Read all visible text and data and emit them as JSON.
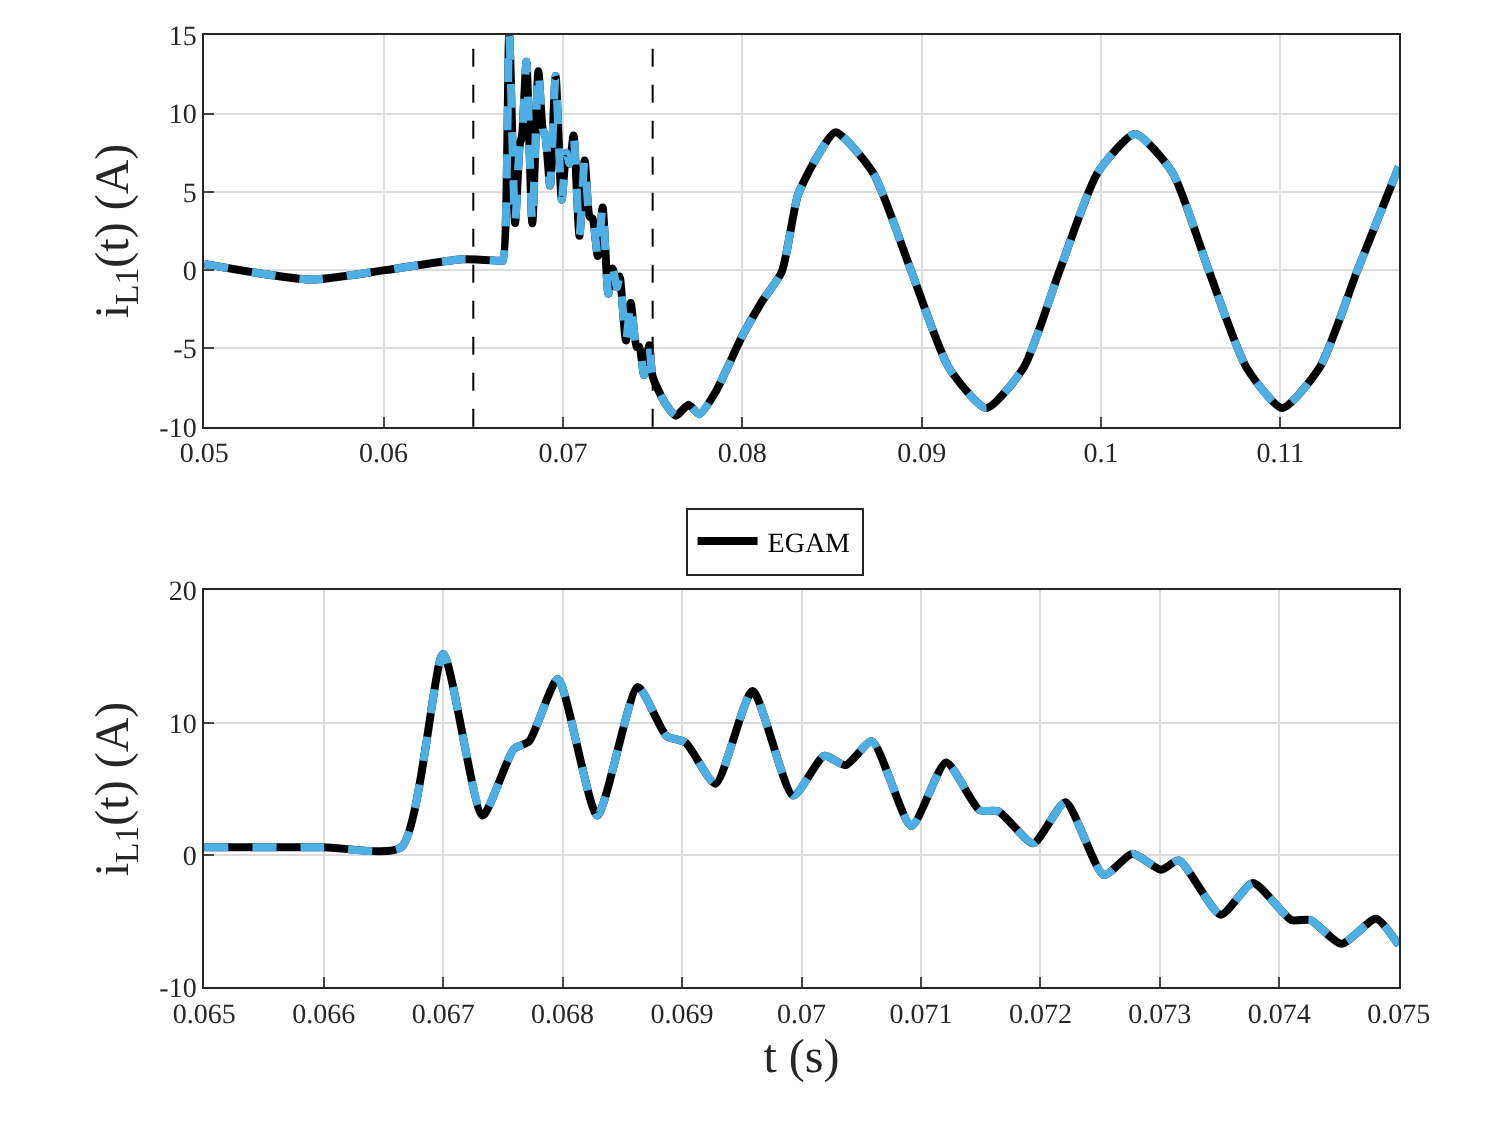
{
  "chart_data": [
    {
      "type": "line",
      "ylabel": "i$_{L1}$(t) (A)",
      "xlim": [
        0.05,
        0.1166
      ],
      "xticks": [
        0.05,
        0.06,
        0.07,
        0.08,
        0.09,
        0.1,
        0.11
      ],
      "ylim": [
        -10,
        15
      ],
      "yticks": [
        -10,
        -5,
        0,
        5,
        10,
        15
      ],
      "grid": true,
      "marker": "none",
      "legend": "bottom",
      "x": [
        0.05,
        0.0559,
        0.0601,
        0.0644,
        0.0665,
        0.06665,
        0.067,
        0.06733,
        0.06759,
        0.06772,
        0.06796,
        0.06829,
        0.06863,
        0.06887,
        0.06903,
        0.06928,
        0.06959,
        0.06993,
        0.07019,
        0.07037,
        0.07059,
        0.07092,
        0.07121,
        0.07149,
        0.07165,
        0.07194,
        0.07221,
        0.07253,
        0.07277,
        0.07301,
        0.07316,
        0.07351,
        0.07378,
        0.0741,
        0.07426,
        0.07452,
        0.07481,
        0.075,
        0.0757,
        0.0763,
        0.077,
        0.0776,
        0.0785,
        0.08,
        0.0811,
        0.0822,
        0.0831,
        0.0841,
        0.0852,
        0.0873,
        0.0894,
        0.0915,
        0.0936,
        0.0957,
        0.0977,
        0.0998,
        0.1019,
        0.104,
        0.106,
        0.1081,
        0.1101,
        0.1122,
        0.1143,
        0.1166
      ],
      "series": [
        {
          "name": "EGAM",
          "color": "#000000",
          "line_style": "solid",
          "values": [
            0.4,
            -0.6,
            0,
            0.7,
            0.6,
            0.6,
            15,
            3.0,
            8.0,
            8.6,
            13.3,
            3.0,
            12.7,
            9.0,
            8.5,
            5.4,
            12.4,
            4.5,
            7.5,
            6.8,
            8.6,
            2.2,
            7.0,
            3.4,
            3.3,
            0.9,
            4.0,
            -1.5,
            0.1,
            -1.1,
            -0.4,
            -4.5,
            -2.1,
            -4.9,
            -4.9,
            -6.7,
            -4.8,
            -6.8,
            -8.5,
            -9.3,
            -8.6,
            -9.2,
            -7.8,
            -4.2,
            -2.0,
            -0.1,
            4.8,
            7.1,
            8.8,
            6.2,
            0,
            -6.2,
            -8.8,
            -6.2,
            0,
            6.2,
            8.7,
            6.2,
            0,
            -6.2,
            -8.8,
            -6.2,
            0,
            6.6
          ]
        },
        {
          "color": "#4dafe3",
          "line_style": "dashed",
          "values": [
            0.4,
            -0.6,
            0,
            0.7,
            0.6,
            0.6,
            15,
            3.0,
            8.0,
            8.6,
            13.3,
            3.0,
            12.7,
            9.0,
            8.5,
            5.4,
            12.4,
            4.5,
            7.5,
            6.8,
            8.6,
            2.2,
            7.0,
            3.4,
            3.3,
            0.9,
            4.0,
            -1.5,
            0.1,
            -1.1,
            -0.4,
            -4.5,
            -2.1,
            -4.9,
            -4.9,
            -6.7,
            -4.8,
            -6.8,
            -8.5,
            -9.3,
            -8.6,
            -9.2,
            -7.8,
            -4.2,
            -2.0,
            -0.1,
            4.8,
            7.1,
            8.8,
            6.2,
            0,
            -6.2,
            -8.8,
            -6.2,
            0,
            6.2,
            8.7,
            6.2,
            0,
            -6.2,
            -8.8,
            -6.2,
            0,
            6.6
          ]
        }
      ],
      "ref_lines": [
        {
          "axis": "x",
          "value": 0.065,
          "color": "#000000",
          "line_style": "dashed"
        },
        {
          "axis": "x",
          "value": 0.075,
          "color": "#000000",
          "line_style": "dashed"
        }
      ]
    },
    {
      "type": "line",
      "xlabel": "t (s)",
      "ylabel": "i$_{L1}$(t) (A)",
      "xlim": [
        0.065,
        0.075
      ],
      "xticks": [
        0.065,
        0.066,
        0.067,
        0.068,
        0.069,
        0.07,
        0.071,
        0.072,
        0.073,
        0.074,
        0.075
      ],
      "ylim": [
        -10,
        20
      ],
      "yticks": [
        -10,
        0,
        10,
        20
      ],
      "grid": true,
      "marker": "none",
      "x": [
        0.065,
        0.066,
        0.06665,
        0.067,
        0.06733,
        0.06759,
        0.06772,
        0.06796,
        0.06829,
        0.06863,
        0.06887,
        0.06903,
        0.06928,
        0.06959,
        0.06993,
        0.07019,
        0.07037,
        0.07059,
        0.07092,
        0.07121,
        0.07149,
        0.07165,
        0.07194,
        0.07221,
        0.07253,
        0.07277,
        0.07301,
        0.07316,
        0.07351,
        0.07378,
        0.0741,
        0.07426,
        0.07452,
        0.07481,
        0.075
      ],
      "series": [
        {
          "color": "#000000",
          "line_style": "solid",
          "values": [
            0.6,
            0.6,
            0.6,
            15.2,
            3.0,
            8.0,
            8.6,
            13.3,
            3.0,
            12.7,
            9.0,
            8.5,
            5.4,
            12.4,
            4.5,
            7.5,
            6.8,
            8.6,
            2.2,
            7.0,
            3.4,
            3.3,
            0.9,
            4.0,
            -1.5,
            0.1,
            -1.1,
            -0.4,
            -4.5,
            -2.1,
            -4.9,
            -4.9,
            -6.7,
            -4.8,
            -6.8
          ]
        },
        {
          "color": "#4dafe3",
          "line_style": "dashed",
          "values": [
            0.6,
            0.6,
            0.6,
            15.2,
            3.0,
            8.0,
            8.6,
            13.3,
            3.0,
            12.7,
            9.0,
            8.5,
            5.4,
            12.4,
            4.5,
            7.5,
            6.8,
            8.6,
            2.2,
            7.0,
            3.4,
            3.3,
            0.9,
            4.0,
            -1.5,
            0.1,
            -1.1,
            -0.4,
            -4.5,
            -2.1,
            -4.9,
            -4.9,
            -6.7,
            -4.8,
            -6.8
          ]
        }
      ]
    }
  ]
}
